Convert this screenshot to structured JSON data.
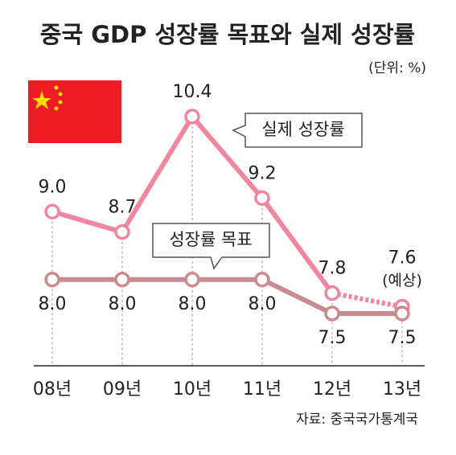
{
  "chart_data": {
    "type": "line",
    "title": "중국 GDP 성장률 목표와 실제 성장률",
    "unit": "(단위: %)",
    "source": "자료: 중국국가통계국",
    "categories": [
      "08년",
      "09년",
      "10년",
      "11년",
      "12년",
      "13년"
    ],
    "series": [
      {
        "name": "실제 성장률",
        "color": "#f0879f",
        "values": [
          9.0,
          8.7,
          10.4,
          9.2,
          7.8,
          7.6
        ],
        "value_labels": [
          "9.0",
          "8.7",
          "10.4",
          "9.2",
          "7.8",
          "7.6"
        ]
      },
      {
        "name": "성장률 목표",
        "color": "#c98b8d",
        "values": [
          8.0,
          8.0,
          8.0,
          8.0,
          7.5,
          7.5
        ],
        "value_labels": [
          "8.0",
          "8.0",
          "8.0",
          "8.0",
          "7.5",
          "7.5"
        ]
      }
    ],
    "annotation": "(예상)"
  }
}
